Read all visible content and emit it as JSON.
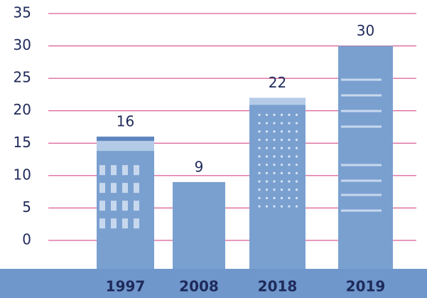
{
  "chart_data": {
    "type": "bar",
    "categories": [
      "1997",
      "2008",
      "2018",
      "2019"
    ],
    "values": [
      16,
      9,
      22,
      30
    ],
    "color": "#7aa0d0",
    "ylim": [
      0,
      35
    ],
    "yticks": [
      0,
      5,
      10,
      15,
      20,
      25,
      30,
      35
    ],
    "grid": true
  }
}
